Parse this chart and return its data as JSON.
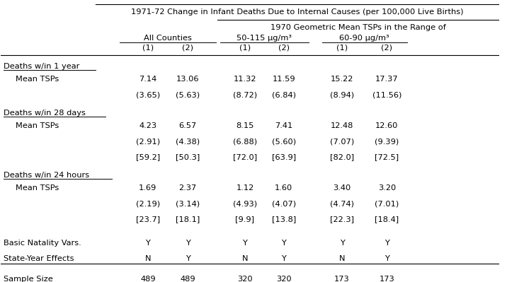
{
  "title_line1": "1971-72 Change in Infant Deaths Due to Internal Causes (per 100,000 Live Births)",
  "subtitle_line1": "1970 Geometric Mean TSPs in the Range of",
  "col_group1": "All Counties",
  "col_group2": "50-115 μg/m³",
  "col_group3": "60-90 μg/m³",
  "col_headers": [
    "(1)",
    "(2)",
    "(1)",
    "(2)",
    "(1)",
    "(2)"
  ],
  "section1_header": "Deaths w/in 1 year",
  "section1_row1_label": "Mean TSPs",
  "section1_data": [
    [
      "7.14",
      "13.06",
      "11.32",
      "11.59",
      "15.22",
      "17.37"
    ],
    [
      "(3.65)",
      "(5.63)",
      "(8.72)",
      "(6.84)",
      "(8.94)",
      "(11.56)"
    ]
  ],
  "section2_header": "Deaths w/in 28 days",
  "section2_row1_label": "Mean TSPs",
  "section2_data": [
    [
      "4.23",
      "6.57",
      "8.15",
      "7.41",
      "12.48",
      "12.60"
    ],
    [
      "(2.91)",
      "(4.38)",
      "(6.88)",
      "(5.60)",
      "(7.07)",
      "(9.39)"
    ],
    [
      "[59.2]",
      "[50.3]",
      "[72.0]",
      "[63.9]",
      "[82.0]",
      "[72.5]"
    ]
  ],
  "section3_header": "Deaths w/in 24 hours",
  "section3_row1_label": "Mean TSPs",
  "section3_data": [
    [
      "1.69",
      "2.37",
      "1.12",
      "1.60",
      "3.40",
      "3.20"
    ],
    [
      "(2.19)",
      "(3.14)",
      "(4.93)",
      "(4.07)",
      "(4.74)",
      "(7.01)"
    ],
    [
      "[23.7]",
      "[18.1]",
      "[9.9]",
      "[13.8]",
      "[22.3]",
      "[18.4]"
    ]
  ],
  "footer_rows": [
    [
      "Basic Natality Vars.",
      "Y",
      "Y",
      "Y",
      "Y",
      "Y",
      "Y"
    ],
    [
      "State-Year Effects",
      "N",
      "Y",
      "N",
      "Y",
      "N",
      "Y"
    ]
  ],
  "sample_size_row": [
    "Sample Size",
    "489",
    "489",
    "320",
    "320",
    "173",
    "173"
  ],
  "bg_color": "#ffffff",
  "text_color": "#000000",
  "font_size": 8.2
}
